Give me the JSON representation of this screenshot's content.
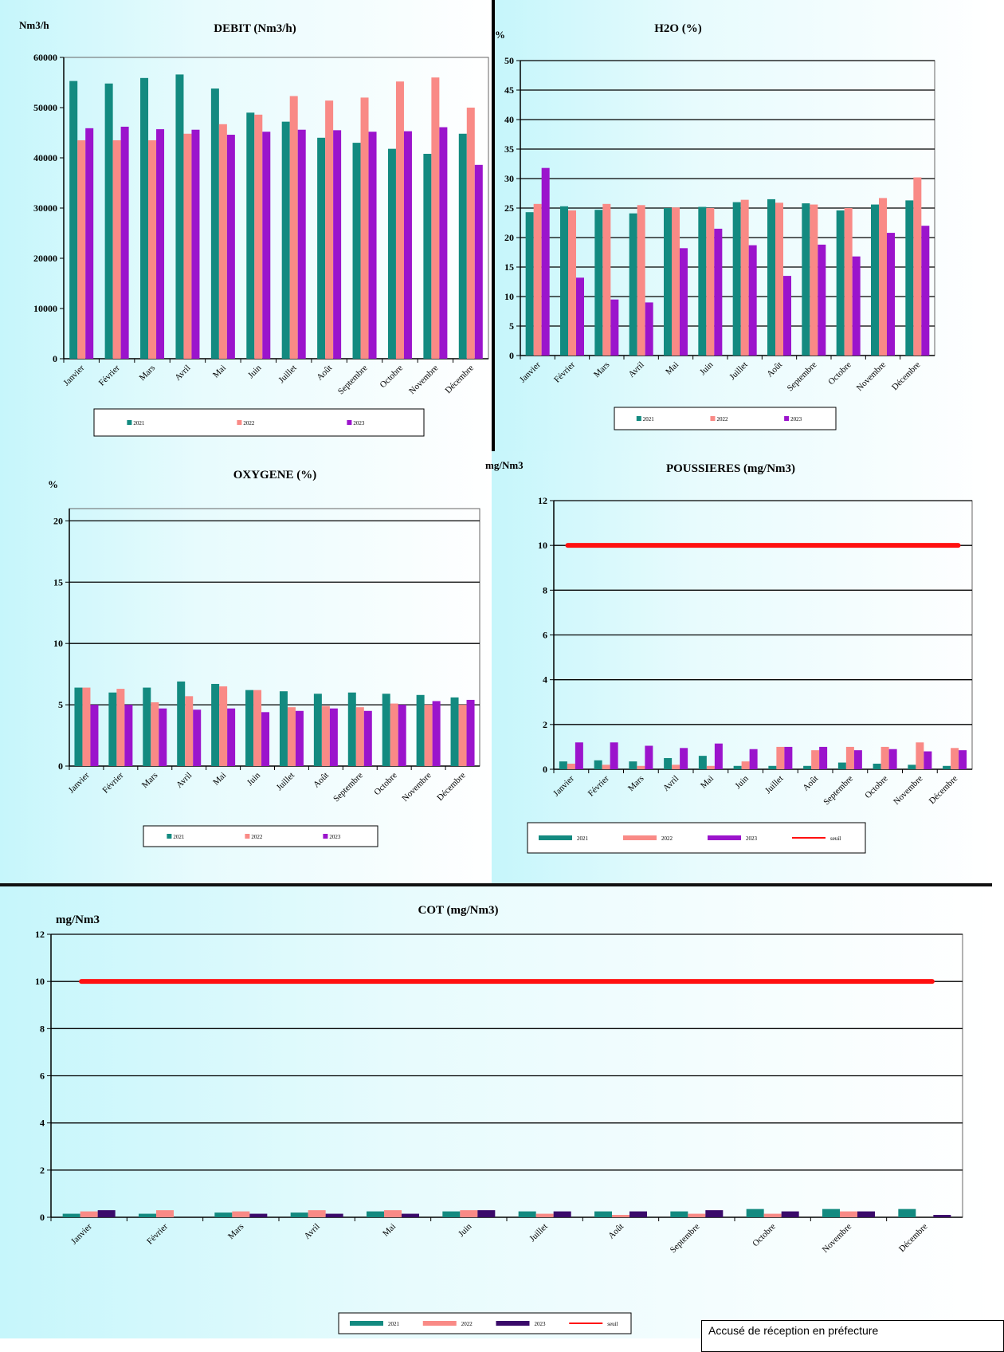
{
  "months": [
    "Janvier",
    "Février",
    "Mars",
    "Avril",
    "Mai",
    "Juin",
    "Juillet",
    "Août",
    "Septembre",
    "Octobre",
    "Novembre",
    "Décembre"
  ],
  "colors": {
    "2021": "#138a80",
    "2022": "#f98a86",
    "2023": "#9b14cc",
    "cot2023": "#3a0a6a",
    "seuil": "#ff1010"
  },
  "stamp": {
    "text": "Accusé de réception en préfecture"
  },
  "chart_data": [
    {
      "id": "debit",
      "type": "bar",
      "title": "DEBIT (Nm3/h)",
      "ylabel": "Nm3/h",
      "ylim": [
        0,
        60000
      ],
      "yticks": [
        0,
        10000,
        20000,
        30000,
        40000,
        50000,
        60000
      ],
      "grid": false,
      "legend": "bottom",
      "series": [
        {
          "name": "2021",
          "values": [
            55300,
            54800,
            55900,
            56600,
            53800,
            49000,
            47200,
            44000,
            43000,
            41800,
            40800,
            44800
          ]
        },
        {
          "name": "2022",
          "values": [
            43500,
            43500,
            43500,
            44800,
            46700,
            48600,
            52300,
            51400,
            52000,
            55200,
            56000,
            50000
          ]
        },
        {
          "name": "2023",
          "values": [
            45900,
            46200,
            45700,
            45600,
            44600,
            45200,
            45600,
            45500,
            45200,
            45300,
            46100,
            38600
          ]
        }
      ]
    },
    {
      "id": "h2o",
      "type": "bar",
      "title": "H2O (%)",
      "ylabel": "%",
      "ylim": [
        0,
        50
      ],
      "yticks": [
        0,
        5,
        10,
        15,
        20,
        25,
        30,
        35,
        40,
        45,
        50
      ],
      "grid": true,
      "legend": "bottom",
      "series": [
        {
          "name": "2021",
          "values": [
            24.3,
            25.3,
            24.7,
            24.1,
            25.0,
            25.2,
            26.0,
            26.5,
            25.8,
            24.6,
            25.6,
            26.3
          ]
        },
        {
          "name": "2022",
          "values": [
            25.7,
            24.6,
            25.7,
            25.5,
            25.1,
            25.0,
            26.4,
            25.9,
            25.6,
            25.0,
            26.7,
            30.2
          ]
        },
        {
          "name": "2023",
          "values": [
            31.8,
            13.2,
            9.5,
            9.0,
            18.2,
            21.5,
            18.7,
            13.5,
            18.8,
            16.8,
            20.8,
            22.0
          ]
        }
      ]
    },
    {
      "id": "oxygene",
      "type": "bar",
      "title": "OXYGENE (%)",
      "ylabel": "%",
      "ylim": [
        0,
        21
      ],
      "yticks": [
        0,
        5,
        10,
        15,
        20
      ],
      "grid": true,
      "legend": "bottom",
      "series": [
        {
          "name": "2021",
          "values": [
            6.4,
            6.0,
            6.4,
            6.9,
            6.7,
            6.2,
            6.1,
            5.9,
            6.0,
            5.9,
            5.8,
            5.6
          ]
        },
        {
          "name": "2022",
          "values": [
            6.4,
            6.3,
            5.2,
            5.7,
            6.5,
            6.2,
            4.8,
            4.9,
            4.8,
            5.1,
            5.0,
            5.0
          ]
        },
        {
          "name": "2023",
          "values": [
            5.0,
            5.0,
            4.7,
            4.6,
            4.7,
            4.4,
            4.5,
            4.7,
            4.5,
            5.0,
            5.3,
            5.4
          ]
        }
      ]
    },
    {
      "id": "poussieres",
      "type": "bar",
      "title": "POUSSIERES (mg/Nm3)",
      "ylabel": "mg/Nm3",
      "ylim": [
        0,
        12
      ],
      "yticks": [
        0,
        2,
        4,
        6,
        8,
        10,
        12
      ],
      "grid": true,
      "legend": "bottom",
      "series": [
        {
          "name": "2021",
          "values": [
            0.35,
            0.4,
            0.35,
            0.5,
            0.6,
            0.15,
            0.15,
            0.15,
            0.3,
            0.25,
            0.2,
            0.15
          ]
        },
        {
          "name": "2022",
          "values": [
            0.25,
            0.2,
            0.15,
            0.2,
            0.15,
            0.35,
            1.0,
            0.85,
            1.0,
            1.0,
            1.2,
            0.95
          ]
        },
        {
          "name": "2023",
          "values": [
            1.2,
            1.2,
            1.05,
            0.95,
            1.15,
            0.9,
            1.0,
            1.0,
            0.85,
            0.9,
            0.8,
            0.85
          ]
        }
      ],
      "threshold": {
        "name": "seuil",
        "value": 10
      }
    },
    {
      "id": "cot",
      "type": "bar",
      "title": "COT (mg/Nm3)",
      "ylabel": "mg/Nm3",
      "ylim": [
        0,
        12
      ],
      "yticks": [
        0,
        2,
        4,
        6,
        8,
        10,
        12
      ],
      "grid": true,
      "legend": "bottom",
      "series": [
        {
          "name": "2021",
          "values": [
            0.15,
            0.15,
            0.2,
            0.2,
            0.25,
            0.25,
            0.25,
            0.25,
            0.25,
            0.35,
            0.35,
            0.35
          ]
        },
        {
          "name": "2022",
          "values": [
            0.25,
            0.3,
            0.25,
            0.3,
            0.3,
            0.3,
            0.15,
            0.1,
            0.15,
            0.15,
            0.25,
            0.0
          ]
        },
        {
          "name": "2023",
          "values": [
            0.3,
            0.0,
            0.15,
            0.15,
            0.15,
            0.3,
            0.25,
            0.25,
            0.3,
            0.25,
            0.25,
            0.1
          ]
        }
      ],
      "threshold": {
        "name": "seuil",
        "value": 10
      }
    }
  ]
}
